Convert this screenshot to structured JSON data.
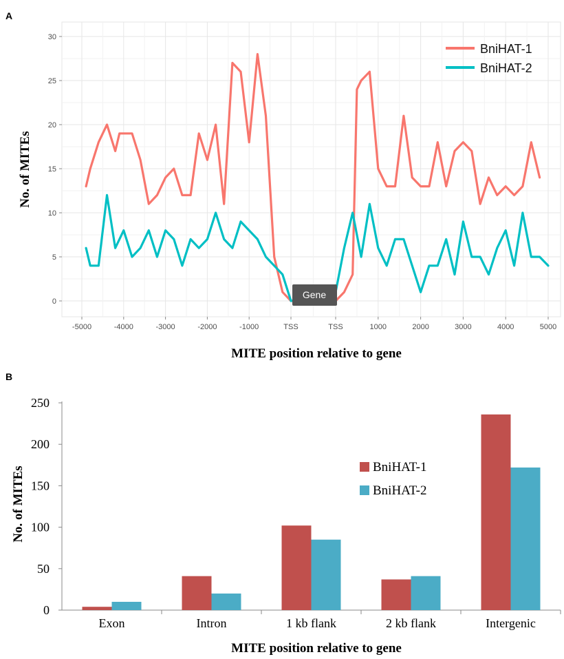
{
  "chart_data": [
    {
      "panel_label": "A",
      "type": "line",
      "xlabel": "MITE position relative to gene",
      "ylabel": "No. of MITEs",
      "ylim": [
        0,
        30
      ],
      "y_ticks": [
        "0",
        "5",
        "10",
        "15",
        "20",
        "25",
        "30"
      ],
      "x_tick_labels": [
        "-5000",
        "-4000",
        "-3000",
        "-2000",
        "-1000",
        "TSS",
        "TSS",
        "1000",
        "2000",
        "3000",
        "4000",
        "5000"
      ],
      "gene_box_label": "Gene",
      "legend_position": "top-right",
      "grid": true,
      "series": [
        {
          "name": "BniHAT-1",
          "color": "#F8766D",
          "points": [
            [
              -4900,
              13
            ],
            [
              -4800,
              15
            ],
            [
              -4600,
              18
            ],
            [
              -4400,
              20
            ],
            [
              -4200,
              17
            ],
            [
              -4100,
              19
            ],
            [
              -3800,
              19
            ],
            [
              -3600,
              16
            ],
            [
              -3400,
              11
            ],
            [
              -3200,
              12
            ],
            [
              -3000,
              14
            ],
            [
              -2800,
              15
            ],
            [
              -2600,
              12
            ],
            [
              -2400,
              12
            ],
            [
              -2200,
              19
            ],
            [
              -2000,
              16
            ],
            [
              -1800,
              20
            ],
            [
              -1600,
              11
            ],
            [
              -1400,
              27
            ],
            [
              -1200,
              26
            ],
            [
              -1000,
              18
            ],
            [
              -800,
              28
            ],
            [
              -600,
              21
            ],
            [
              -400,
              5
            ],
            [
              -200,
              1
            ],
            [
              0,
              0
            ],
            [
              0,
              0
            ],
            [
              200,
              1
            ],
            [
              400,
              3
            ],
            [
              500,
              24
            ],
            [
              600,
              25
            ],
            [
              800,
              26
            ],
            [
              1000,
              15
            ],
            [
              1200,
              13
            ],
            [
              1400,
              13
            ],
            [
              1600,
              21
            ],
            [
              1800,
              14
            ],
            [
              2000,
              13
            ],
            [
              2200,
              13
            ],
            [
              2400,
              18
            ],
            [
              2600,
              13
            ],
            [
              2800,
              17
            ],
            [
              3000,
              18
            ],
            [
              3200,
              17
            ],
            [
              3400,
              11
            ],
            [
              3600,
              14
            ],
            [
              3800,
              12
            ],
            [
              4000,
              13
            ],
            [
              4200,
              12
            ],
            [
              4400,
              13
            ],
            [
              4600,
              18
            ],
            [
              4800,
              14
            ]
          ]
        },
        {
          "name": "BniHAT-2",
          "color": "#00BFC4",
          "points": [
            [
              -4900,
              6
            ],
            [
              -4800,
              4
            ],
            [
              -4600,
              4
            ],
            [
              -4400,
              12
            ],
            [
              -4200,
              6
            ],
            [
              -4000,
              8
            ],
            [
              -3800,
              5
            ],
            [
              -3600,
              6
            ],
            [
              -3400,
              8
            ],
            [
              -3200,
              5
            ],
            [
              -3000,
              8
            ],
            [
              -2800,
              7
            ],
            [
              -2600,
              4
            ],
            [
              -2400,
              7
            ],
            [
              -2200,
              6
            ],
            [
              -2000,
              7
            ],
            [
              -1800,
              10
            ],
            [
              -1600,
              7
            ],
            [
              -1400,
              6
            ],
            [
              -1200,
              9
            ],
            [
              -1000,
              8
            ],
            [
              -800,
              7
            ],
            [
              -600,
              5
            ],
            [
              -400,
              4
            ],
            [
              -200,
              3
            ],
            [
              0,
              0
            ],
            [
              0,
              1
            ],
            [
              200,
              6
            ],
            [
              400,
              10
            ],
            [
              600,
              5
            ],
            [
              800,
              11
            ],
            [
              1000,
              6
            ],
            [
              1200,
              4
            ],
            [
              1400,
              7
            ],
            [
              1600,
              7
            ],
            [
              1800,
              4
            ],
            [
              2000,
              1
            ],
            [
              2200,
              4
            ],
            [
              2400,
              4
            ],
            [
              2600,
              7
            ],
            [
              2800,
              3
            ],
            [
              3000,
              9
            ],
            [
              3200,
              5
            ],
            [
              3400,
              5
            ],
            [
              3600,
              3
            ],
            [
              3800,
              6
            ],
            [
              4000,
              8
            ],
            [
              4200,
              4
            ],
            [
              4400,
              10
            ],
            [
              4600,
              5
            ],
            [
              4800,
              5
            ],
            [
              5000,
              4
            ]
          ]
        }
      ]
    },
    {
      "panel_label": "B",
      "type": "bar",
      "xlabel": "MITE position relative to gene",
      "ylabel": "No. of MITEs",
      "ylim": [
        0,
        250
      ],
      "y_ticks": [
        "0",
        "50",
        "100",
        "150",
        "200",
        "250"
      ],
      "categories": [
        "Exon",
        "Intron",
        "1 kb flank",
        "2 kb flank",
        "Intergenic"
      ],
      "legend_position": "center-right",
      "grid": false,
      "series": [
        {
          "name": "BniHAT-1",
          "color": "#C0504D",
          "values": [
            4,
            41,
            102,
            37,
            236
          ]
        },
        {
          "name": "BniHAT-2",
          "color": "#4BACC6",
          "values": [
            10,
            20,
            85,
            41,
            172
          ]
        }
      ]
    }
  ]
}
